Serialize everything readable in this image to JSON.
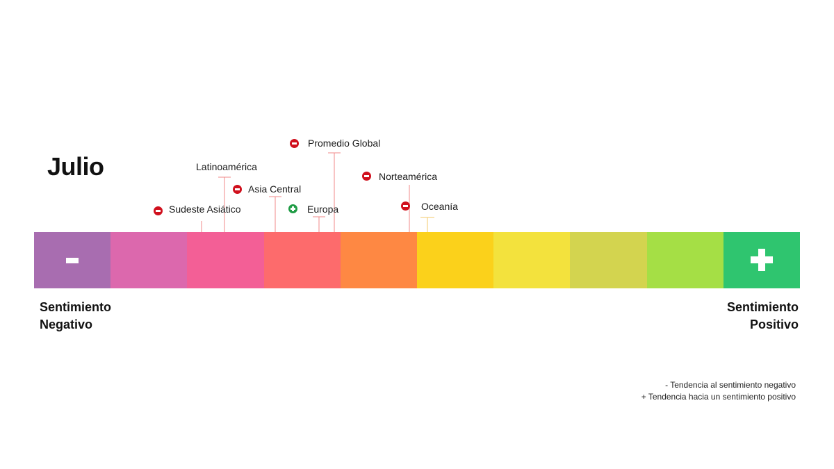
{
  "title": "Julio",
  "scale": {
    "segment_colors": [
      "#a86db0",
      "#dc68ad",
      "#f35f96",
      "#fd6b6c",
      "#fe8843",
      "#fbd11b",
      "#f3e23d",
      "#d3d44f",
      "#a5df45",
      "#2fc56f"
    ],
    "negative_symbol": "-",
    "positive_symbol": "+"
  },
  "ends": {
    "negative_line1": "Sentimiento",
    "negative_line2": "Negativo",
    "positive_line1": "Sentimiento",
    "positive_line2": "Positivo"
  },
  "regions": [
    {
      "name": "Sudeste Asiático",
      "trend": "down",
      "segment": 3
    },
    {
      "name": "Latinoamérica",
      "trend": "none",
      "segment": 3
    },
    {
      "name": "Asia Central",
      "trend": "down",
      "segment": 4
    },
    {
      "name": "Europa",
      "trend": "up",
      "segment": 4
    },
    {
      "name": "Promedio Global",
      "trend": "down",
      "segment": 4
    },
    {
      "name": "Norteamérica",
      "trend": "down",
      "segment": 5
    },
    {
      "name": "Oceanía",
      "trend": "down",
      "segment": 6
    }
  ],
  "colors": {
    "trend_down": "#d0101d",
    "trend_up": "#1f9c45",
    "connector_default": "#f08a8a",
    "connector_oceania": "#f3c96a"
  },
  "legend": {
    "negative": "- Tendencia al sentimiento negativo",
    "positive": "+ Tendencia hacia un sentimiento positivo"
  }
}
